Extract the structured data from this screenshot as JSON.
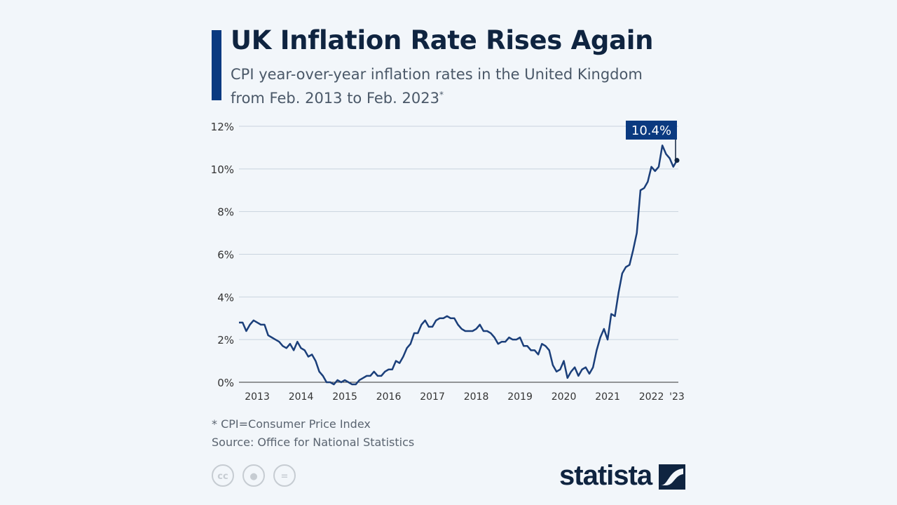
{
  "title": "UK Inflation Rate Rises Again",
  "subtitle": "CPI year-over-year inflation rates in the United Kingdom from Feb. 2013 to Feb. 2023",
  "subtitle_mark": "*",
  "footnote": "* CPI=Consumer Price Index",
  "source": "Source: Office for National Statistics",
  "license_icons": [
    "cc-icon",
    "by-icon",
    "nd-icon"
  ],
  "logo": "statista",
  "colors": {
    "line": "#1b3f7a",
    "accent": "#0b3a80",
    "callout": "#0b3a80"
  },
  "chart_data": {
    "type": "line",
    "x_start": "2013-02",
    "x_end": "2023-02",
    "frequency": "monthly",
    "ylim": [
      0,
      12
    ],
    "yticks": [
      "0%",
      "2%",
      "4%",
      "6%",
      "8%",
      "10%",
      "12%"
    ],
    "ytick_values": [
      0,
      2,
      4,
      6,
      8,
      10,
      12
    ],
    "xticks": [
      "2013",
      "2014",
      "2015",
      "2016",
      "2017",
      "2018",
      "2019",
      "2020",
      "2021",
      "2022",
      "'23"
    ],
    "grid": true,
    "callout": {
      "label": "10.4%",
      "date": "2023-02",
      "value": 10.4
    },
    "values": [
      2.8,
      2.8,
      2.4,
      2.7,
      2.9,
      2.8,
      2.7,
      2.7,
      2.2,
      2.1,
      2.0,
      1.9,
      1.7,
      1.6,
      1.8,
      1.5,
      1.9,
      1.6,
      1.5,
      1.2,
      1.3,
      1.0,
      0.5,
      0.3,
      0.0,
      0.0,
      -0.1,
      0.1,
      0.0,
      0.1,
      0.0,
      -0.1,
      -0.1,
      0.1,
      0.2,
      0.3,
      0.3,
      0.5,
      0.3,
      0.3,
      0.5,
      0.6,
      0.6,
      1.0,
      0.9,
      1.2,
      1.6,
      1.8,
      2.3,
      2.3,
      2.7,
      2.9,
      2.6,
      2.6,
      2.9,
      3.0,
      3.0,
      3.1,
      3.0,
      3.0,
      2.7,
      2.5,
      2.4,
      2.4,
      2.4,
      2.5,
      2.7,
      2.4,
      2.4,
      2.3,
      2.1,
      1.8,
      1.9,
      1.9,
      2.1,
      2.0,
      2.0,
      2.1,
      1.7,
      1.7,
      1.5,
      1.5,
      1.3,
      1.8,
      1.7,
      1.5,
      0.8,
      0.5,
      0.6,
      1.0,
      0.2,
      0.5,
      0.7,
      0.3,
      0.6,
      0.7,
      0.4,
      0.7,
      1.5,
      2.1,
      2.5,
      2.0,
      3.2,
      3.1,
      4.2,
      5.1,
      5.4,
      5.5,
      6.2,
      7.0,
      9.0,
      9.1,
      9.4,
      10.1,
      9.9,
      10.1,
      11.1,
      10.7,
      10.5,
      10.1,
      10.4
    ]
  }
}
